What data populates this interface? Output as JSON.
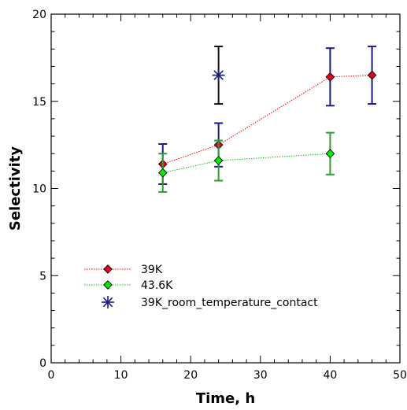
{
  "chart_data": {
    "type": "scatter",
    "title": "",
    "xlabel": "Time, h",
    "ylabel": "Selectivity",
    "xlim": [
      0,
      50
    ],
    "ylim": [
      0,
      20
    ],
    "x_major_ticks": [
      0,
      10,
      20,
      30,
      40,
      50
    ],
    "x_minor_step": 2,
    "y_major_ticks": [
      0,
      5,
      10,
      15,
      20
    ],
    "y_minor_step": 1,
    "grid": false,
    "legend_position": "lower-left",
    "series": [
      {
        "name": "39K",
        "marker": "diamond",
        "line": "dotted",
        "line_color": "#ff0000",
        "marker_fill": "#e8001c",
        "errorbar_color": "#1a1a8c",
        "points": [
          {
            "x": 16,
            "y": 11.4,
            "err_low": 10.25,
            "err_high": 12.55
          },
          {
            "x": 24,
            "y": 12.5,
            "err_low": 11.25,
            "err_high": 13.75
          },
          {
            "x": 40,
            "y": 16.4,
            "err_low": 14.75,
            "err_high": 18.05
          },
          {
            "x": 46,
            "y": 16.5,
            "err_low": 14.85,
            "err_high": 18.15
          }
        ]
      },
      {
        "name": "43.6K",
        "marker": "diamond",
        "line": "dotted",
        "line_color": "#00cc00",
        "marker_fill": "#00ee00",
        "errorbar_color": "#2e9e2e",
        "points": [
          {
            "x": 16,
            "y": 10.9,
            "err_low": 9.8,
            "err_high": 12.0
          },
          {
            "x": 24,
            "y": 11.6,
            "err_low": 10.45,
            "err_high": 12.75
          },
          {
            "x": 40,
            "y": 12.0,
            "err_low": 10.8,
            "err_high": 13.2
          }
        ]
      },
      {
        "name": "39K_room_temperature_contact",
        "marker": "asterisk",
        "line": "none",
        "marker_color": "#1a1a8c",
        "errorbar_color": "#111111",
        "points": [
          {
            "x": 24,
            "y": 16.5,
            "err_low": 14.85,
            "err_high": 18.15
          }
        ]
      }
    ]
  }
}
